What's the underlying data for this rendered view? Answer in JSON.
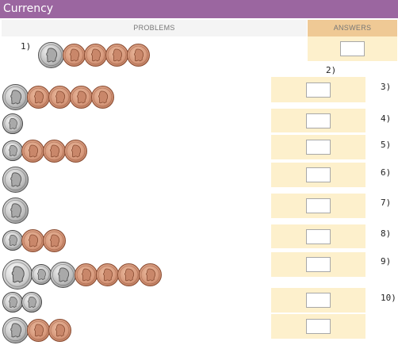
{
  "title": "Currency",
  "headers": {
    "problems": "PROBLEMS",
    "answers": "ANSWERS"
  },
  "problems": [
    {
      "label": "1)",
      "coins": [
        "nickel",
        "penny",
        "penny",
        "penny",
        "penny"
      ],
      "answer": ""
    },
    {
      "label": "2)",
      "coins": [
        "nickel",
        "penny",
        "penny",
        "penny",
        "penny"
      ],
      "answer": ""
    },
    {
      "label": "3)",
      "coins": [
        "dime"
      ],
      "answer": ""
    },
    {
      "label": "4)",
      "coins": [
        "dime",
        "penny",
        "penny",
        "penny"
      ],
      "answer": ""
    },
    {
      "label": "5)",
      "coins": [
        "nickel"
      ],
      "answer": ""
    },
    {
      "label": "6)",
      "coins": [
        "nickel"
      ],
      "answer": ""
    },
    {
      "label": "7)",
      "coins": [
        "dime",
        "penny",
        "penny"
      ],
      "answer": ""
    },
    {
      "label": "8)",
      "coins": [
        "quarter",
        "dime",
        "nickel",
        "penny",
        "penny",
        "penny",
        "penny"
      ],
      "answer": ""
    },
    {
      "label": "9)",
      "coins": [
        "dime",
        "dime"
      ],
      "answer": ""
    },
    {
      "label": "10)",
      "coins": [
        "nickel",
        "penny",
        "penny"
      ],
      "answer": ""
    }
  ],
  "coin_colors": {
    "penny": "#d6977a",
    "nickel": "#bdbdbd",
    "dime": "#c4c4c4",
    "quarter": "#d0d0d0"
  },
  "accent_colors": {
    "title_bar": "#9b66a0",
    "answers_header": "#efc995",
    "answer_cell": "#fdf0cc"
  }
}
